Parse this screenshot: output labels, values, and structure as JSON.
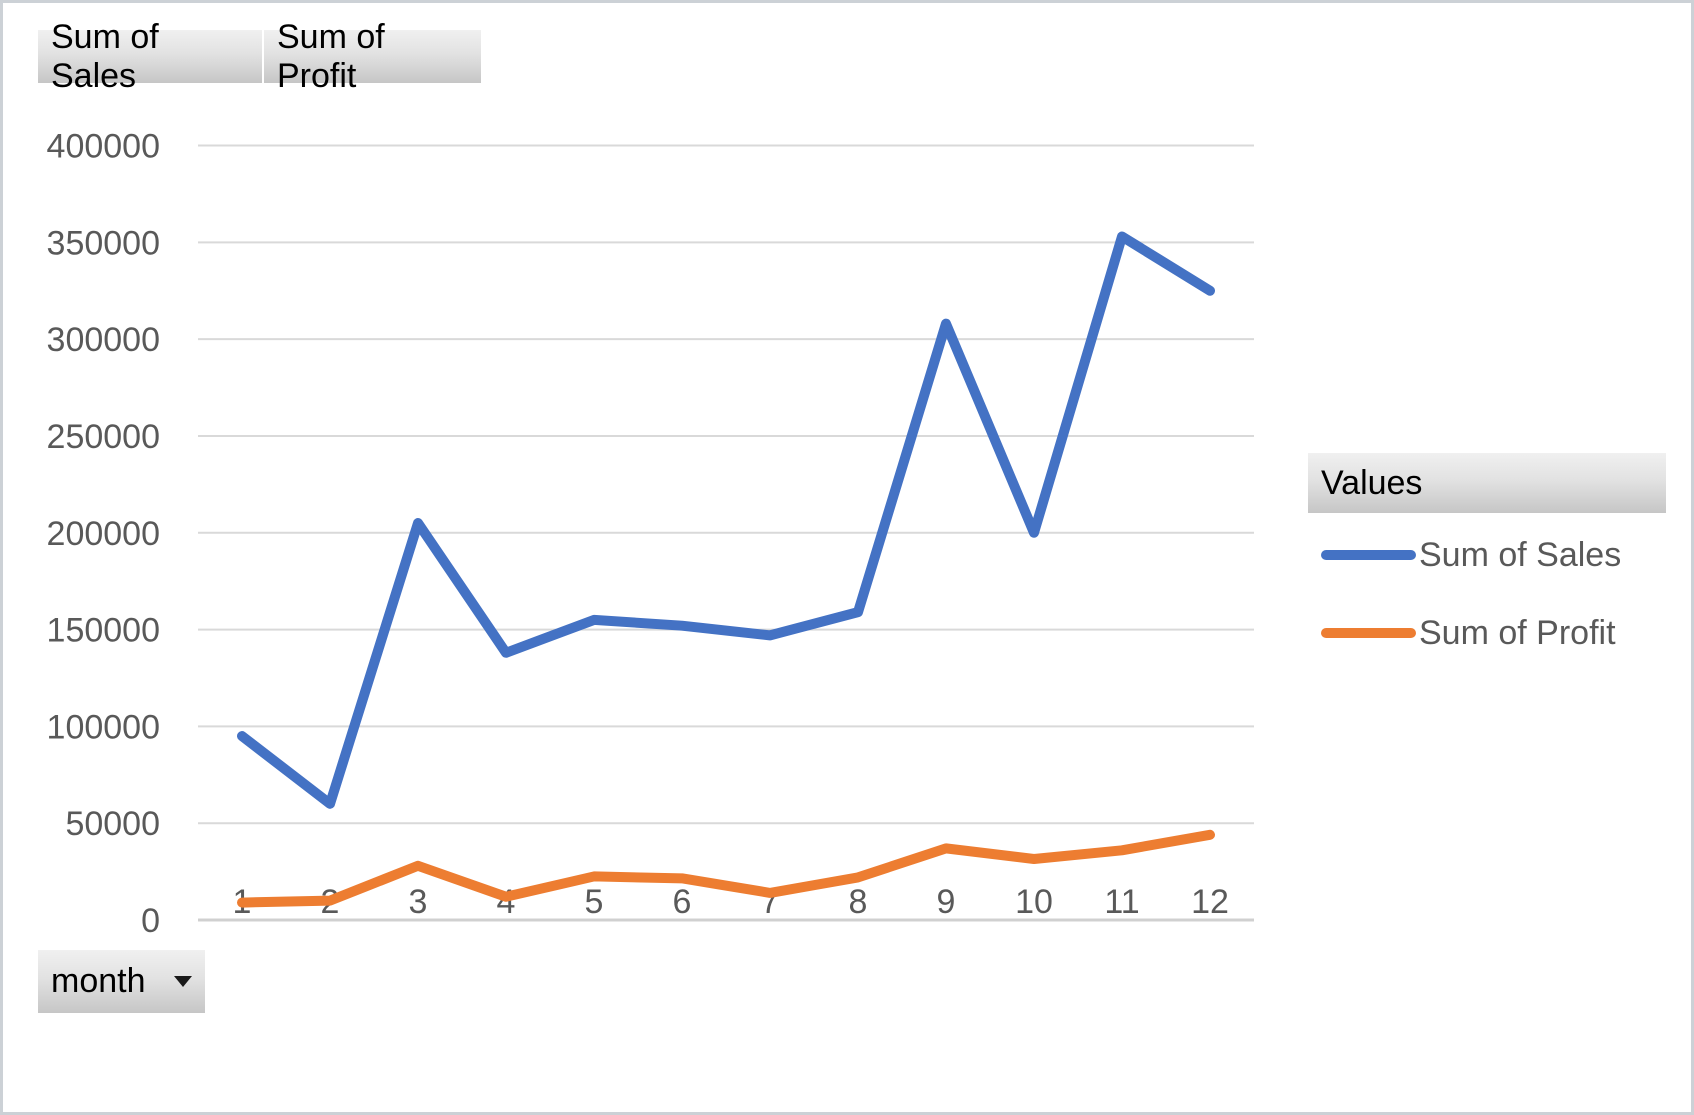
{
  "field_buttons": [
    {
      "label": "Sum of Sales"
    },
    {
      "label": "Sum of Profit"
    }
  ],
  "legend": {
    "header": "Values"
  },
  "axis_field": {
    "label": "month"
  },
  "chart_data": {
    "type": "line",
    "title": "",
    "xlabel": "month",
    "ylabel": "",
    "categories": [
      "1",
      "2",
      "3",
      "4",
      "5",
      "6",
      "7",
      "8",
      "9",
      "10",
      "11",
      "12"
    ],
    "series": [
      {
        "name": "Sum of Sales",
        "color": "#4472C4",
        "values": [
          95000,
          60000,
          205000,
          138000,
          155000,
          152000,
          147000,
          159000,
          308000,
          200000,
          353000,
          325000
        ]
      },
      {
        "name": "Sum of Profit",
        "color": "#ED7D31",
        "values": [
          9000,
          10000,
          28000,
          12000,
          22500,
          21500,
          14000,
          22000,
          37000,
          31500,
          36000,
          44000
        ]
      }
    ],
    "ylim": [
      0,
      400000
    ],
    "yticks": [
      0,
      50000,
      100000,
      150000,
      200000,
      250000,
      300000,
      350000,
      400000
    ],
    "grid": true,
    "legend_position": "right",
    "colors": {
      "gridline": "#D9D9D9",
      "axis_line": "#D0D0D0",
      "tick_label": "#595959"
    }
  }
}
